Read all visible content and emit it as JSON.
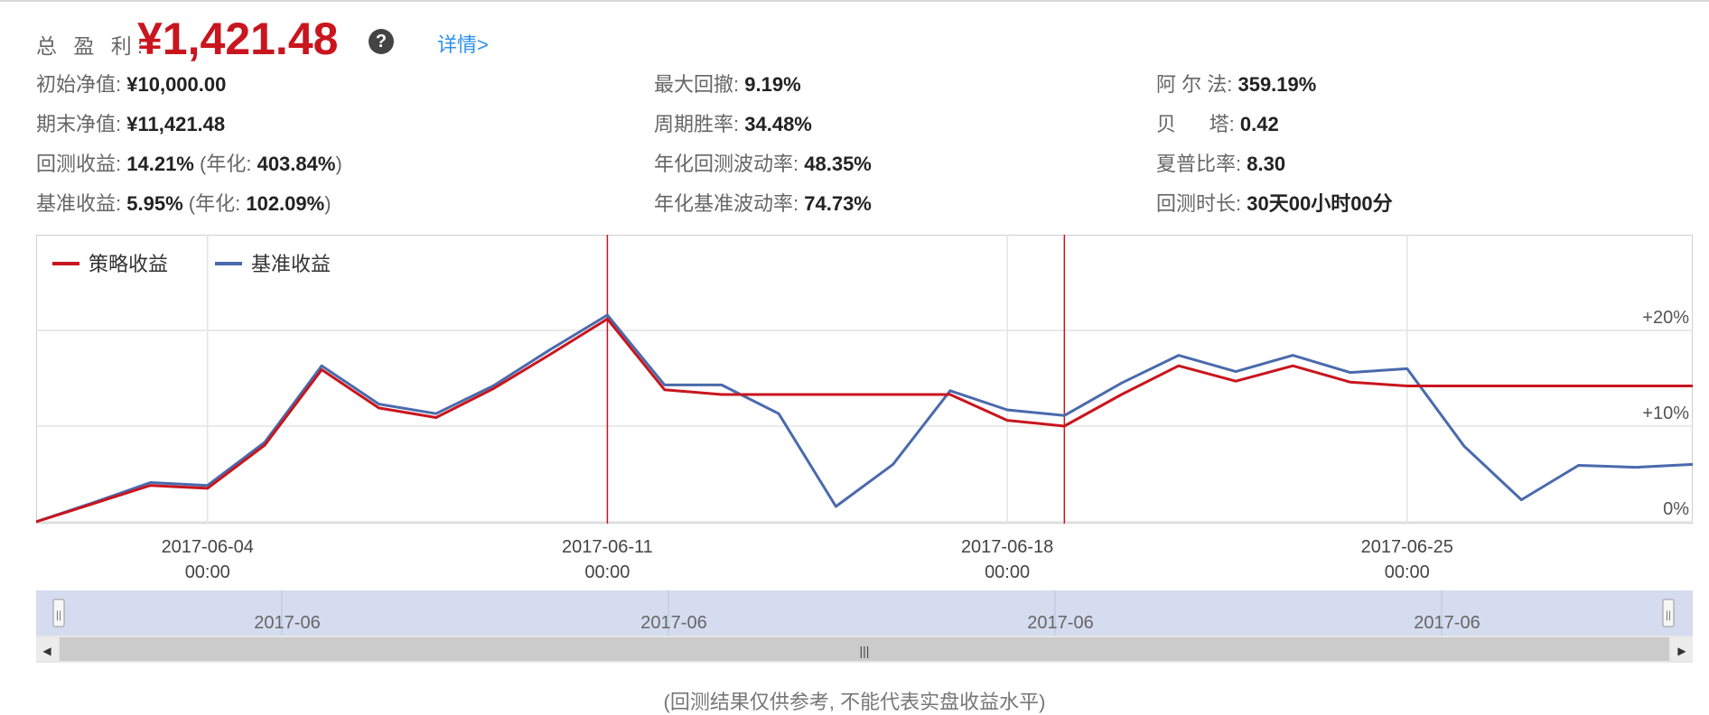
{
  "header": {
    "total_profit_label": "总 盈 利:",
    "total_profit_value": "¥1,421.48",
    "help_symbol": "?",
    "detail_link": "详情>"
  },
  "metrics": [
    {
      "label": "初始净值:",
      "value": "¥10,000.00"
    },
    {
      "label": "期末净值:",
      "value": "¥11,421.48"
    },
    {
      "label": "回测收益:",
      "value": "14.21%",
      "annual_label": "(年化:",
      "annual_value": "403.84%",
      "close": ")"
    },
    {
      "label": "基准收益:",
      "value": "5.95%",
      "annual_label": "(年化:",
      "annual_value": "102.09%",
      "close": ")"
    },
    {
      "label": "最大回撤:",
      "value": "9.19%"
    },
    {
      "label": "周期胜率:",
      "value": "34.48%"
    },
    {
      "label": "年化回测波动率:",
      "value": "48.35%"
    },
    {
      "label": "年化基准波动率:",
      "value": "74.73%"
    },
    {
      "label": "阿 尔 法:",
      "value": "359.19%"
    },
    {
      "label": "贝      塔:",
      "value": "0.42"
    },
    {
      "label": "夏普比率:",
      "value": "8.30"
    },
    {
      "label": "回测时长:",
      "value": "30天00小时00分"
    }
  ],
  "footnote": "(回测结果仅供参考, 不能代表实盘收益水平)",
  "colors": {
    "strategy": "#c9151e",
    "benchmark": "#4a6aac",
    "accent_link": "#2e8fea"
  },
  "chart_data": {
    "type": "line",
    "legend_placement": "top-left",
    "grid": true,
    "ylim": [
      0,
      22
    ],
    "y_ticks": [
      {
        "value": 0,
        "label": "0%"
      },
      {
        "value": 10,
        "label": "+10%"
      },
      {
        "value": 20,
        "label": "+20%"
      }
    ],
    "x_start": "2017-06-01",
    "x_end": "2017-06-30",
    "x_ticks": [
      {
        "date": "2017-06-04",
        "line1": "2017-06-04",
        "line2": "00:00"
      },
      {
        "date": "2017-06-11",
        "line1": "2017-06-11",
        "line2": "00:00"
      },
      {
        "date": "2017-06-18",
        "line1": "2017-06-18",
        "line2": "00:00"
      },
      {
        "date": "2017-06-25",
        "line1": "2017-06-25",
        "line2": "00:00"
      }
    ],
    "markers": [
      "2017-06-11",
      "2017-06-19"
    ],
    "x": [
      "2017-06-01",
      "2017-06-02",
      "2017-06-03",
      "2017-06-04",
      "2017-06-05",
      "2017-06-06",
      "2017-06-07",
      "2017-06-08",
      "2017-06-09",
      "2017-06-10",
      "2017-06-11",
      "2017-06-12",
      "2017-06-13",
      "2017-06-14",
      "2017-06-15",
      "2017-06-16",
      "2017-06-17",
      "2017-06-18",
      "2017-06-19",
      "2017-06-20",
      "2017-06-21",
      "2017-06-22",
      "2017-06-23",
      "2017-06-24",
      "2017-06-25",
      "2017-06-26",
      "2017-06-27",
      "2017-06-28",
      "2017-06-29",
      "2017-06-30"
    ],
    "series": [
      {
        "name": "策略收益",
        "color": "#c9151e",
        "values": [
          0,
          1.9,
          3.8,
          3.5,
          8.0,
          15.9,
          11.9,
          10.9,
          13.9,
          17.5,
          21.2,
          13.8,
          13.3,
          13.3,
          13.3,
          13.3,
          13.3,
          10.6,
          10.0,
          13.3,
          16.3,
          14.7,
          16.3,
          14.6,
          14.2,
          14.2,
          14.2,
          14.2,
          14.2,
          14.2
        ]
      },
      {
        "name": "基准收益",
        "color": "#4a6aac",
        "values": [
          0,
          2.0,
          4.1,
          3.8,
          8.3,
          16.3,
          12.3,
          11.3,
          14.2,
          18.0,
          21.6,
          14.3,
          14.3,
          11.3,
          1.6,
          6.0,
          13.7,
          11.7,
          11.1,
          14.5,
          17.4,
          15.7,
          17.4,
          15.6,
          16.0,
          7.9,
          2.3,
          5.9,
          5.7,
          6.0
        ]
      }
    ]
  },
  "navigator": {
    "labels": [
      "2017-06",
      "2017-06",
      "2017-06",
      "2017-06"
    ],
    "handle_symbol": "||",
    "grip_symbol": "|||",
    "left_arrow": "◀",
    "right_arrow": "▶"
  }
}
